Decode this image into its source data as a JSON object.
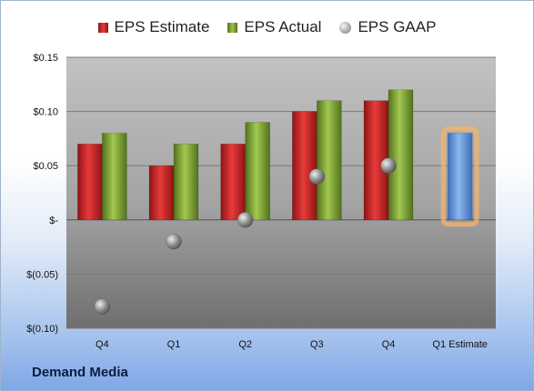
{
  "chart_data": {
    "type": "bar",
    "categories": [
      "Q4",
      "Q1",
      "Q2",
      "Q3",
      "Q4",
      "Q1 Estimate"
    ],
    "series": [
      {
        "name": "EPS Estimate",
        "values": [
          0.07,
          0.05,
          0.07,
          0.1,
          0.11,
          null
        ],
        "color": "#d22a2a"
      },
      {
        "name": "EPS Actual",
        "values": [
          0.08,
          0.07,
          0.09,
          0.11,
          0.12,
          null
        ],
        "color": "#8cb13e"
      },
      {
        "name": "EPS GAAP",
        "values": [
          -0.08,
          -0.02,
          0.0,
          0.04,
          0.05,
          null
        ],
        "color": "#a0a0a0"
      }
    ],
    "estimate": {
      "category": "Q1 Estimate",
      "value": 0.08,
      "color": "#6b9bdb",
      "glow": "#f5b36b"
    },
    "yticks": [
      {
        "value": 0.15,
        "label": "$0.15"
      },
      {
        "value": 0.1,
        "label": "$0.10"
      },
      {
        "value": 0.05,
        "label": "$0.05"
      },
      {
        "value": 0,
        "label": "$-"
      },
      {
        "value": -0.05,
        "label": "$(0.05)"
      },
      {
        "value": -0.1,
        "label": "$(0.10)"
      }
    ],
    "ylim": [
      -0.1,
      0.15
    ],
    "grid": true,
    "legend_position": "top-center"
  },
  "company": "Demand Media"
}
